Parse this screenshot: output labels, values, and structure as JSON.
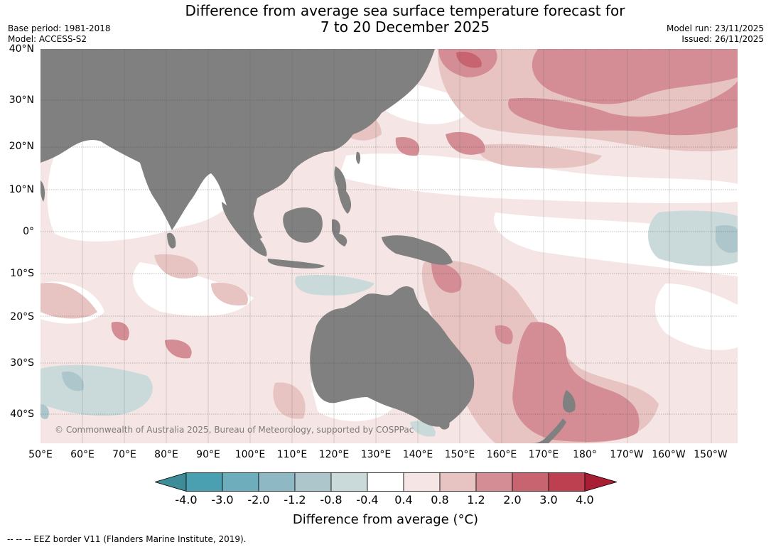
{
  "title": {
    "line1": "Difference from average sea surface temperature forecast for",
    "line2": "7 to 20 December 2025"
  },
  "meta": {
    "base_period": "Base period: 1981-2018",
    "model": "Model: ACCESS-S2",
    "model_run": "Model run: 23/11/2025",
    "issued": "Issued: 26/11/2025"
  },
  "map": {
    "copyright": "© Commonwealth of Australia 2025, Bureau of Meteorology, supported by COSPPac",
    "lat_labels": [
      "40°N",
      "30°N",
      "20°N",
      "10°N",
      "0°",
      "10°S",
      "20°S",
      "30°S",
      "40°S"
    ],
    "lon_labels": [
      "50°E",
      "60°E",
      "70°E",
      "80°E",
      "90°E",
      "100°E",
      "110°E",
      "120°E",
      "130°E",
      "140°E",
      "150°E",
      "160°E",
      "170°E",
      "180°",
      "170°W",
      "160°W",
      "150°W"
    ],
    "land_color": "#808080",
    "gridlines": "on"
  },
  "colorbar": {
    "ticks": [
      "-4.0",
      "-3.0",
      "-2.0",
      "-1.2",
      "-0.8",
      "-0.4",
      "0.4",
      "0.8",
      "1.2",
      "2.0",
      "3.0",
      "4.0"
    ],
    "colors": [
      "#3e8c98",
      "#4aa0b1",
      "#6eadbb",
      "#8eb8c4",
      "#adc6cc",
      "#cadadb",
      "#ffffff",
      "#f5e6e5",
      "#e7c4c2",
      "#d48d95",
      "#c8646f",
      "#bc4050",
      "#a81f35"
    ],
    "label": "Difference from average (°C)"
  },
  "footer": {
    "eez": "--  --  -- EEZ border V11 (Flanders Marine Institute, 2019)."
  }
}
